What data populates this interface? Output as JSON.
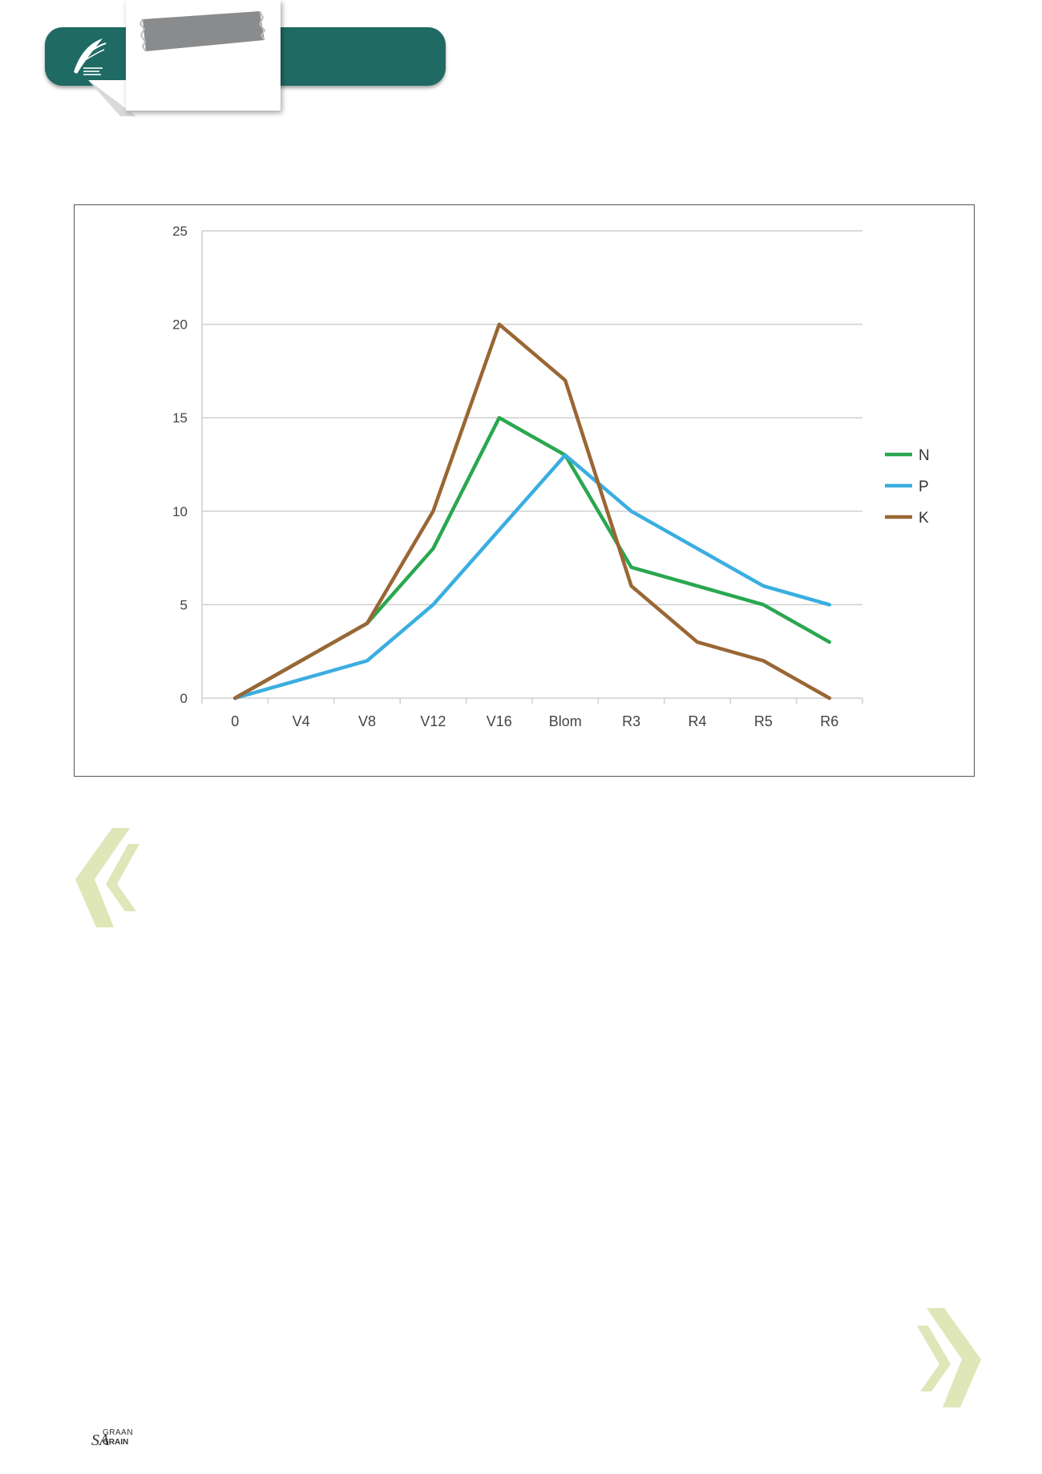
{
  "header": {
    "brand_logo": "grain-sa-feather-logo",
    "tab_tape": "grey-tape-label"
  },
  "chart_data": {
    "type": "line",
    "title": "",
    "xlabel": "",
    "ylabel": "",
    "categories": [
      "0",
      "V4",
      "V8",
      "V12",
      "V16",
      "Blom",
      "R3",
      "R4",
      "R5",
      "R6"
    ],
    "ylim": [
      0,
      25
    ],
    "yticks": [
      "0",
      "5",
      "10",
      "15",
      "20",
      "25"
    ],
    "grid": true,
    "legend_position": "right",
    "series": [
      {
        "name": "N",
        "color": "#2aa750",
        "values": [
          0,
          2,
          4,
          8,
          15,
          13,
          7,
          6,
          5,
          3
        ]
      },
      {
        "name": "P",
        "color": "#3aaee0",
        "values": [
          0,
          1,
          2,
          5,
          9,
          13,
          10,
          8,
          6,
          5
        ]
      },
      {
        "name": "K",
        "color": "#9a6634",
        "values": [
          0,
          2,
          4,
          10,
          20,
          17,
          6,
          3,
          2,
          0
        ]
      }
    ]
  },
  "decor": {
    "open_quote": "left-double-chevron",
    "close_quote": "right-double-chevron",
    "accent_color": "#dfe6b8"
  },
  "footer": {
    "logo_sa": "SA",
    "logo_top": "GRAAN",
    "logo_bottom": "GRAIN"
  }
}
